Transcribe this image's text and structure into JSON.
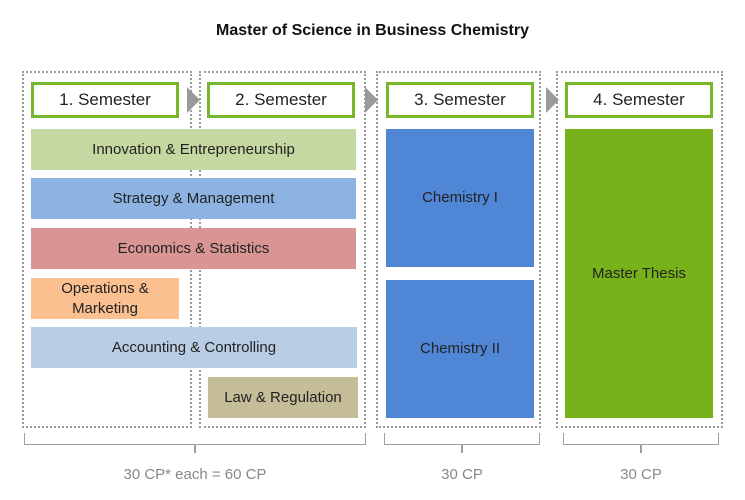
{
  "title": "Master of Science in Business Chemistry",
  "semesters": [
    {
      "label": "1. Semester"
    },
    {
      "label": "2. Semester"
    },
    {
      "label": "3. Semester"
    },
    {
      "label": "4. Semester"
    }
  ],
  "modules": {
    "innovation": "Innovation & Entrepreneurship",
    "strategy": "Strategy & Management",
    "economics": "Economics & Statistics",
    "operations": "Operations &\nMarketing",
    "accounting": "Accounting & Controlling",
    "law": "Law & Regulation",
    "chem1": "Chemistry I",
    "chem2": "Chemistry II",
    "thesis": "Master Thesis"
  },
  "credits": {
    "first_year": "30 CP* each = 60 CP",
    "third": "30 CP",
    "fourth": "30 CP"
  },
  "colors": {
    "accent_green": "#77b82a",
    "innovation": "#c5d8a2",
    "strategy": "#8db3e2",
    "economics": "#d99594",
    "operations": "#fac090",
    "accounting": "#b9cde5",
    "law": "#c4bd97",
    "chemistry": "#4f86d6",
    "thesis": "#77b21b"
  }
}
